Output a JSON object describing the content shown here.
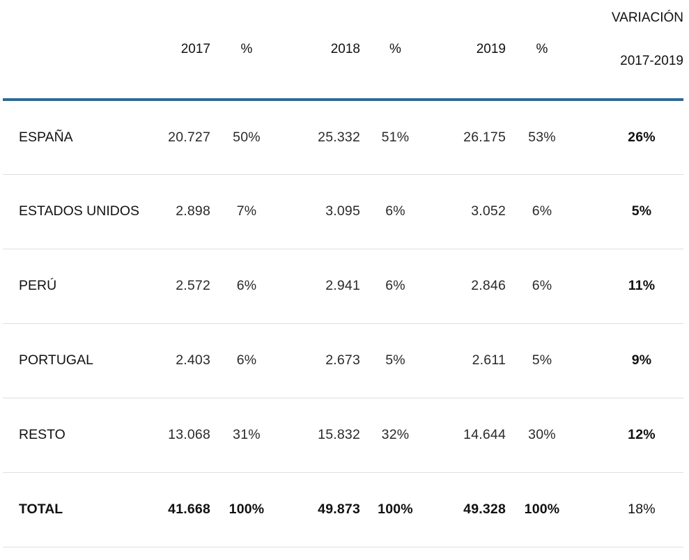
{
  "table": {
    "columns": {
      "country": "",
      "y2017": "2017",
      "p2017": "%",
      "y2018": "2018",
      "p2018": "%",
      "y2019": "2019",
      "p2019": "%",
      "variation_line1": "VARIACIÓN",
      "variation_line2": "2017-2019"
    },
    "rows": [
      {
        "country": "ESPAÑA",
        "y2017": "20.727",
        "p2017": "50%",
        "y2018": "25.332",
        "p2018": "51%",
        "y2019": "26.175",
        "p2019": "53%",
        "variation": "26%"
      },
      {
        "country": "ESTADOS UNIDOS",
        "y2017": "2.898",
        "p2017": "7%",
        "y2018": "3.095",
        "p2018": "6%",
        "y2019": "3.052",
        "p2019": "6%",
        "variation": "5%"
      },
      {
        "country": "PERÚ",
        "y2017": "2.572",
        "p2017": "6%",
        "y2018": "2.941",
        "p2018": "6%",
        "y2019": "2.846",
        "p2019": "6%",
        "variation": "11%"
      },
      {
        "country": "PORTUGAL",
        "y2017": "2.403",
        "p2017": "6%",
        "y2018": "2.673",
        "p2018": "5%",
        "y2019": "2.611",
        "p2019": "5%",
        "variation": "9%"
      },
      {
        "country": "RESTO",
        "y2017": "13.068",
        "p2017": "31%",
        "y2018": "15.832",
        "p2018": "32%",
        "y2019": "14.644",
        "p2019": "30%",
        "variation": "12%"
      }
    ],
    "total": {
      "country": "TOTAL",
      "y2017": "41.668",
      "p2017": "100%",
      "y2018": "49.873",
      "p2018": "100%",
      "y2019": "49.328",
      "p2019": "100%",
      "variation": "18%"
    }
  },
  "colors": {
    "header_rule": "#2e6a95",
    "row_divider": "#dedede",
    "text": "#111111"
  }
}
